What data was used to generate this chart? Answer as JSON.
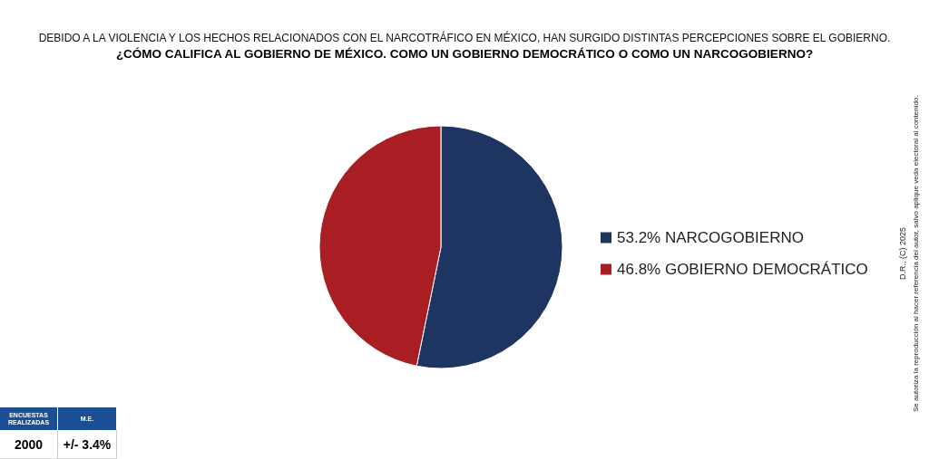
{
  "chart_data": {
    "type": "pie",
    "title": "DEBIDO A LA VIOLENCIA Y LOS HECHOS RELACIONADOS CON EL NARCOTRÁFICO EN MÉXICO, HAN SURGIDO DISTINTAS PERCEPCIONES SOBRE EL GOBIERNO.",
    "subtitle": "¿CÓMO CALIFICA AL GOBIERNO DE MÉXICO. COMO UN GOBIERNO DEMOCRÁTICO O COMO UN NARCOGOBIERNO?",
    "categories": [
      "NARCOGOBIERNO",
      "GOBIERNO DEMOCRÁTICO"
    ],
    "values": [
      53.2,
      46.8
    ],
    "value_labels": [
      "53.2%",
      "46.8%"
    ],
    "colors": [
      "#1e3461",
      "#a81e23"
    ],
    "legend": "right",
    "annotations": [
      "ENCUESTAS REALIZADAS",
      "M.E.",
      "2000",
      "+/- 3.4%",
      "D.R., (C) 2025",
      "Se autoriza la reproducción al hacer referencia del autor, salvo aplique veda electoral al contenido."
    ]
  }
}
